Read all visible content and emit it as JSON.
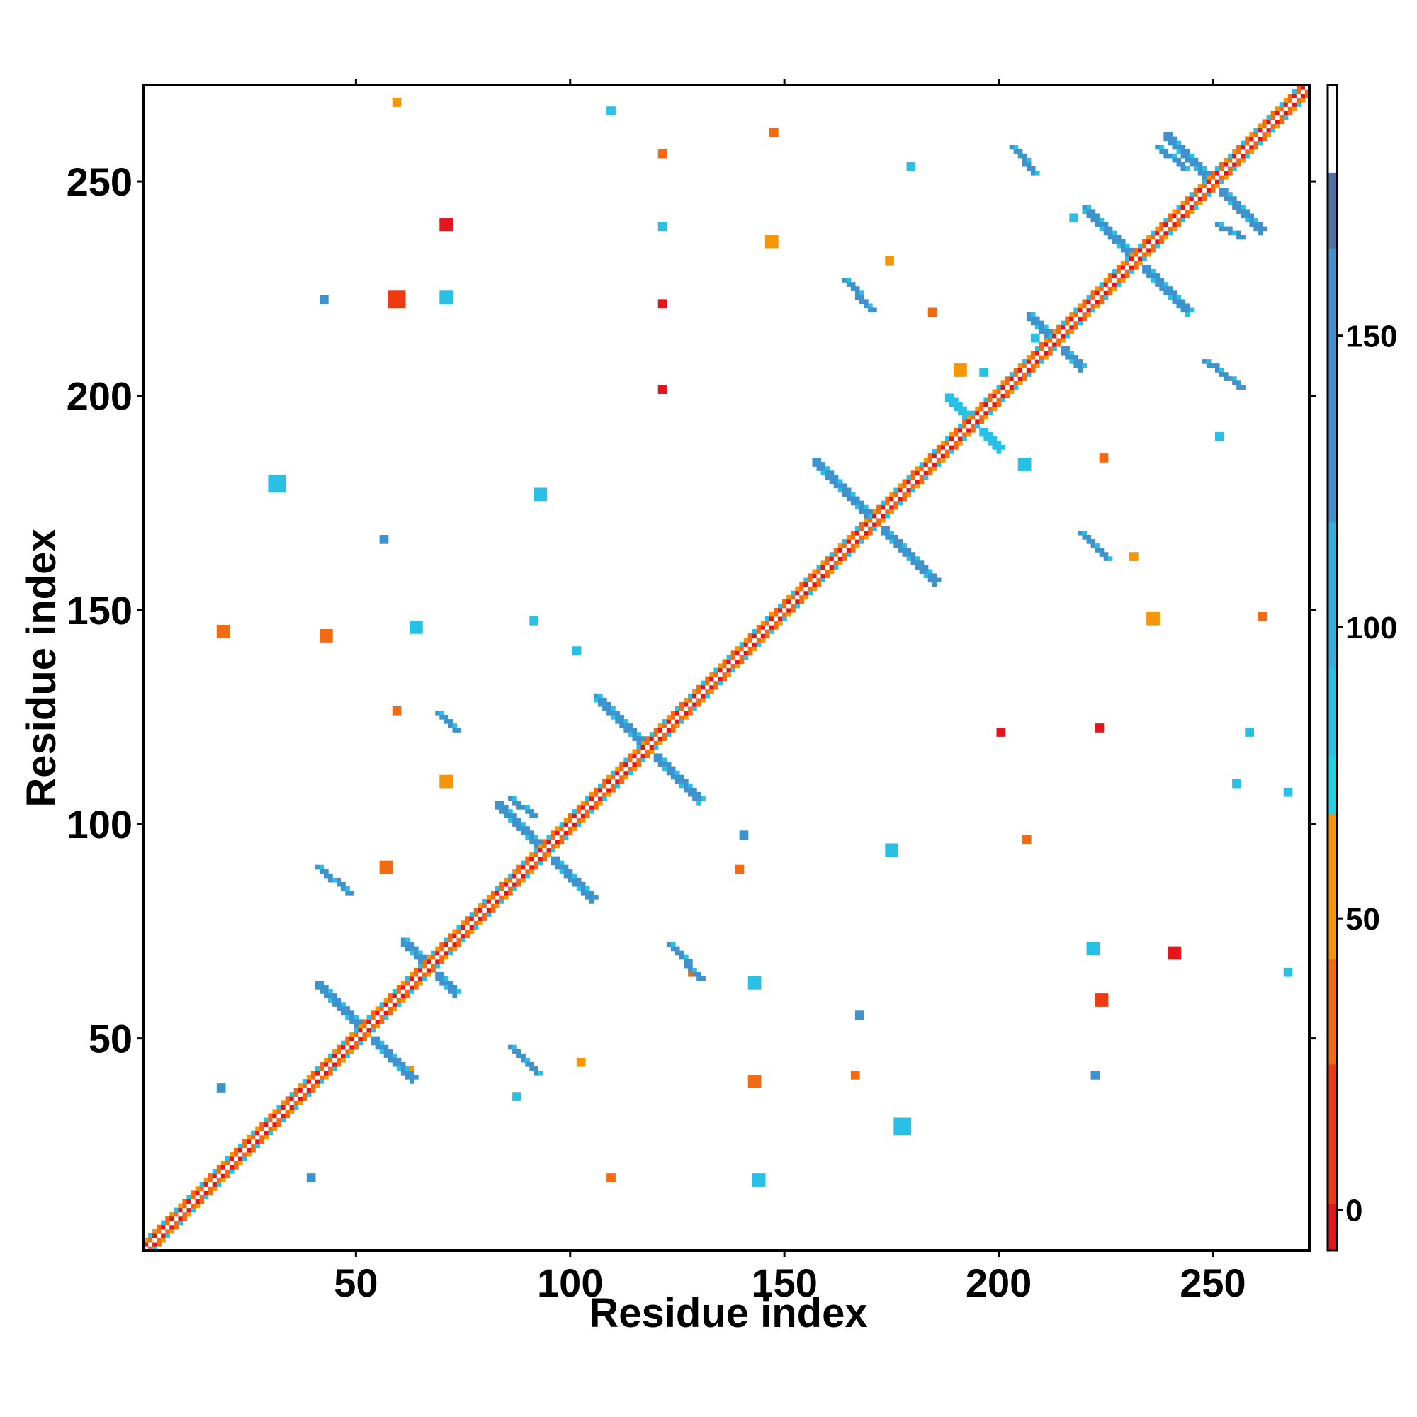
{
  "chart_data": {
    "type": "heatmap",
    "title": "",
    "xlabel": "Residue index",
    "ylabel": "Residue index",
    "xlim": [
      1,
      272
    ],
    "ylim": [
      1,
      272
    ],
    "xticks": [
      50,
      100,
      150,
      200,
      250
    ],
    "yticks": [
      50,
      100,
      150,
      200,
      250
    ],
    "colorbar": {
      "ticks": [
        0,
        50,
        100,
        150
      ],
      "range": [
        -7,
        193
      ],
      "bands": [
        {
          "from": -7,
          "to": 1,
          "color": "#e4161b"
        },
        {
          "from": 1,
          "to": 25,
          "color": "#ee3a12"
        },
        {
          "from": 25,
          "to": 43,
          "color": "#f26a12"
        },
        {
          "from": 43,
          "to": 68,
          "color": "#f49608"
        },
        {
          "from": 68,
          "to": 78,
          "color": "#1fd2e6"
        },
        {
          "from": 78,
          "to": 93,
          "color": "#29c0e6"
        },
        {
          "from": 93,
          "to": 118,
          "color": "#33b0dc"
        },
        {
          "from": 118,
          "to": 165,
          "color": "#3e93cf"
        },
        {
          "from": 165,
          "to": 178,
          "color": "#4f6fa6"
        },
        {
          "from": 178,
          "to": 193,
          "color": "#ffffff"
        }
      ]
    },
    "features": [
      {
        "kind": "diagonal",
        "from": 1,
        "to": 272
      },
      {
        "kind": "anti",
        "center": [
          52,
          52
        ],
        "half": 11,
        "color": "#3e93cf"
      },
      {
        "kind": "anti",
        "center": [
          67,
          67
        ],
        "half": 6,
        "color": "#3e93cf"
      },
      {
        "kind": "anti",
        "center": [
          94,
          94
        ],
        "half": 11,
        "color": "#3e93cf"
      },
      {
        "kind": "anti",
        "center": [
          118,
          118
        ],
        "half": 12,
        "color": "#3e93cf"
      },
      {
        "kind": "anti",
        "center": [
          171,
          171
        ],
        "half": 14,
        "color": "#3e93cf"
      },
      {
        "kind": "anti",
        "center": [
          194,
          194
        ],
        "half": 6,
        "color": "#29c0e6"
      },
      {
        "kind": "anti",
        "center": [
          213,
          213
        ],
        "half": 6,
        "color": "#3e93cf"
      },
      {
        "kind": "anti",
        "center": [
          232,
          232
        ],
        "half": 12,
        "color": "#3e93cf"
      },
      {
        "kind": "anti",
        "center": [
          250,
          250
        ],
        "half": 11,
        "color": "#3e93cf"
      },
      {
        "kind": "strand",
        "from": [
          41,
          90
        ],
        "to": [
          48,
          84
        ],
        "color": "#3e93cf"
      },
      {
        "kind": "strand",
        "from": [
          69,
          126
        ],
        "to": [
          73,
          122
        ],
        "color": "#3e93cf"
      },
      {
        "kind": "strand",
        "from": [
          86,
          106
        ],
        "to": [
          91,
          102
        ],
        "color": "#3e93cf"
      },
      {
        "kind": "strand",
        "from": [
          86,
          48
        ],
        "to": [
          92,
          42
        ],
        "color": "#3e93cf"
      },
      {
        "kind": "strand",
        "from": [
          123,
          72
        ],
        "to": [
          130,
          64
        ],
        "color": "#3e93cf"
      },
      {
        "kind": "strand",
        "from": [
          164,
          227
        ],
        "to": [
          170,
          220
        ],
        "color": "#3e93cf"
      },
      {
        "kind": "strand",
        "from": [
          203,
          258
        ],
        "to": [
          208,
          252
        ],
        "color": "#3e93cf"
      },
      {
        "kind": "strand",
        "from": [
          219,
          168
        ],
        "to": [
          225,
          162
        ],
        "color": "#3e93cf"
      },
      {
        "kind": "strand",
        "from": [
          248,
          208
        ],
        "to": [
          256,
          202
        ],
        "color": "#3e93cf"
      },
      {
        "kind": "strand",
        "from": [
          237,
          258
        ],
        "to": [
          243,
          253
        ],
        "color": "#3e93cf"
      },
      {
        "kind": "strand",
        "from": [
          251,
          240
        ],
        "to": [
          256,
          237
        ],
        "color": "#3e93cf"
      },
      {
        "kind": "blob",
        "at": [
          32,
          180
        ],
        "size": 4,
        "color": "#29c0e6"
      },
      {
        "kind": "blob",
        "at": [
          60,
          223
        ],
        "size": 4,
        "color": "#ee3a12"
      },
      {
        "kind": "blob",
        "at": [
          71,
          223
        ],
        "size": 3,
        "color": "#29c0e6"
      },
      {
        "kind": "blob",
        "at": [
          71,
          240
        ],
        "size": 3,
        "color": "#e4161b"
      },
      {
        "kind": "blob",
        "at": [
          93,
          177
        ],
        "size": 3,
        "color": "#29c0e6"
      },
      {
        "kind": "blob",
        "at": [
          43,
          144
        ],
        "size": 3,
        "color": "#f26a12"
      },
      {
        "kind": "blob",
        "at": [
          64,
          146
        ],
        "size": 3,
        "color": "#29c0e6"
      },
      {
        "kind": "blob",
        "at": [
          147,
          236
        ],
        "size": 3,
        "color": "#f49608"
      },
      {
        "kind": "blob",
        "at": [
          191,
          206
        ],
        "size": 3,
        "color": "#f49608"
      },
      {
        "kind": "blob",
        "at": [
          197,
          206
        ],
        "size": 2,
        "color": "#29c0e6"
      },
      {
        "kind": "blob",
        "at": [
          175,
          94
        ],
        "size": 3,
        "color": "#29c0e6"
      },
      {
        "kind": "blob",
        "at": [
          224,
          59
        ],
        "size": 3,
        "color": "#ee3a12"
      },
      {
        "kind": "blob",
        "at": [
          178,
          30
        ],
        "size": 4,
        "color": "#29c0e6"
      },
      {
        "kind": "blob",
        "at": [
          144,
          17
        ],
        "size": 3,
        "color": "#29c0e6"
      },
      {
        "kind": "blob",
        "at": [
          143,
          40
        ],
        "size": 3,
        "color": "#f26a12"
      },
      {
        "kind": "blob",
        "at": [
          143,
          63
        ],
        "size": 3,
        "color": "#29c0e6"
      },
      {
        "kind": "blob",
        "at": [
          236,
          148
        ],
        "size": 3,
        "color": "#f49608"
      },
      {
        "kind": "blob",
        "at": [
          206,
          184
        ],
        "size": 3,
        "color": "#29c0e6"
      },
      {
        "kind": "blob",
        "at": [
          222,
          71
        ],
        "size": 3,
        "color": "#29c0e6"
      },
      {
        "kind": "blob",
        "at": [
          241,
          70
        ],
        "size": 3,
        "color": "#e4161b"
      },
      {
        "kind": "blob",
        "at": [
          148,
          262
        ],
        "size": 2,
        "color": "#f26a12"
      },
      {
        "kind": "blob",
        "at": [
          122,
          257
        ],
        "size": 2,
        "color": "#f26a12"
      },
      {
        "kind": "blob",
        "at": [
          57,
          90
        ],
        "size": 3,
        "color": "#f26a12"
      },
      {
        "kind": "blob",
        "at": [
          140,
          90
        ],
        "size": 2,
        "color": "#f26a12"
      },
      {
        "kind": "blob",
        "at": [
          129,
          66
        ],
        "size": 2,
        "color": "#f26a12"
      },
      {
        "kind": "blob",
        "at": [
          71,
          110
        ],
        "size": 3,
        "color": "#f49608"
      },
      {
        "kind": "blob",
        "at": [
          60,
          127
        ],
        "size": 2,
        "color": "#f26a12"
      },
      {
        "kind": "blob",
        "at": [
          19,
          145
        ],
        "size": 3,
        "color": "#f26a12"
      },
      {
        "kind": "blob",
        "at": [
          262,
          149
        ],
        "size": 2,
        "color": "#f26a12"
      },
      {
        "kind": "blob",
        "at": [
          209,
          214
        ],
        "size": 2,
        "color": "#29c0e6"
      },
      {
        "kind": "blob",
        "at": [
          175,
          232
        ],
        "size": 2,
        "color": "#f49608"
      },
      {
        "kind": "blob",
        "at": [
          19,
          39
        ],
        "size": 2,
        "color": "#3e93cf"
      },
      {
        "kind": "blob",
        "at": [
          40,
          18
        ],
        "size": 2,
        "color": "#3e93cf"
      },
      {
        "kind": "blob",
        "at": [
          88,
          37
        ],
        "size": 2,
        "color": "#29c0e6"
      },
      {
        "kind": "blob",
        "at": [
          110,
          18
        ],
        "size": 2,
        "color": "#f26a12"
      },
      {
        "kind": "blob",
        "at": [
          168,
          56
        ],
        "size": 2,
        "color": "#3e93cf"
      },
      {
        "kind": "blob",
        "at": [
          223,
          42
        ],
        "size": 2,
        "color": "#3e93cf"
      },
      {
        "kind": "blob",
        "at": [
          63,
          43
        ],
        "size": 2,
        "color": "#f49608"
      },
      {
        "kind": "blob",
        "at": [
          103,
          45
        ],
        "size": 2,
        "color": "#f49608"
      },
      {
        "kind": "blob",
        "at": [
          167,
          42
        ],
        "size": 2,
        "color": "#f26a12"
      },
      {
        "kind": "blob",
        "at": [
          60,
          269
        ],
        "size": 2,
        "color": "#f49608"
      },
      {
        "kind": "blob",
        "at": [
          110,
          267
        ],
        "size": 2,
        "color": "#29c0e6"
      },
      {
        "kind": "blob",
        "at": [
          43,
          223
        ],
        "size": 2,
        "color": "#3e93cf"
      },
      {
        "kind": "blob",
        "at": [
          57,
          167
        ],
        "size": 2,
        "color": "#3e93cf"
      },
      {
        "kind": "blob",
        "at": [
          122,
          240
        ],
        "size": 2,
        "color": "#29c0e6"
      },
      {
        "kind": "blob",
        "at": [
          122,
          202
        ],
        "size": 2,
        "color": "#e4161b"
      },
      {
        "kind": "blob",
        "at": [
          122,
          222
        ],
        "size": 2,
        "color": "#e4161b"
      },
      {
        "kind": "blob",
        "at": [
          92,
          148
        ],
        "size": 2,
        "color": "#29c0e6"
      },
      {
        "kind": "blob",
        "at": [
          102,
          141
        ],
        "size": 2,
        "color": "#29c0e6"
      },
      {
        "kind": "blob",
        "at": [
          141,
          98
        ],
        "size": 2,
        "color": "#3e93cf"
      },
      {
        "kind": "blob",
        "at": [
          201,
          122
        ],
        "size": 2,
        "color": "#e4161b"
      },
      {
        "kind": "blob",
        "at": [
          224,
          123
        ],
        "size": 2,
        "color": "#e4161b"
      },
      {
        "kind": "blob",
        "at": [
          256,
          110
        ],
        "size": 2,
        "color": "#29c0e6"
      },
      {
        "kind": "blob",
        "at": [
          259,
          122
        ],
        "size": 2,
        "color": "#29c0e6"
      },
      {
        "kind": "blob",
        "at": [
          268,
          108
        ],
        "size": 2,
        "color": "#29c0e6"
      },
      {
        "kind": "blob",
        "at": [
          268,
          66
        ],
        "size": 2,
        "color": "#29c0e6"
      },
      {
        "kind": "blob",
        "at": [
          207,
          97
        ],
        "size": 2,
        "color": "#f26a12"
      },
      {
        "kind": "blob",
        "at": [
          252,
          191
        ],
        "size": 2,
        "color": "#29c0e6"
      },
      {
        "kind": "blob",
        "at": [
          225,
          186
        ],
        "size": 2,
        "color": "#f26a12"
      },
      {
        "kind": "blob",
        "at": [
          232,
          163
        ],
        "size": 2,
        "color": "#f49608"
      },
      {
        "kind": "blob",
        "at": [
          180,
          254
        ],
        "size": 2,
        "color": "#29c0e6"
      },
      {
        "kind": "blob",
        "at": [
          218,
          242
        ],
        "size": 2,
        "color": "#29c0e6"
      },
      {
        "kind": "blob",
        "at": [
          185,
          220
        ],
        "size": 2,
        "color": "#f26a12"
      }
    ]
  }
}
